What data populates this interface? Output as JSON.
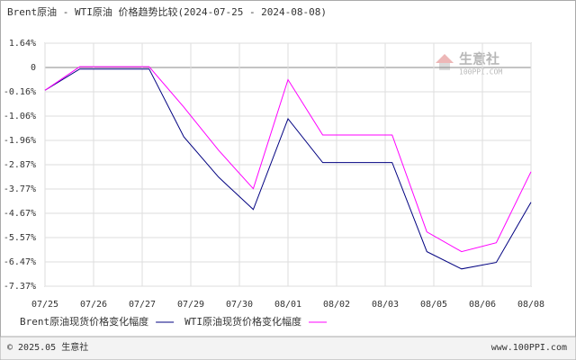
{
  "chart_data": {
    "type": "line",
    "title": "Brent原油 - WTI原油 价格趋势比较(2024-07-25 - 2024-08-08)",
    "watermark": "生意社",
    "watermark_sub": "100PPI.COM",
    "categories": [
      "07/25",
      "07/26",
      "07/27",
      "07/29",
      "07/30",
      "08/01",
      "08/02",
      "08/03",
      "08/05",
      "08/06",
      "08/08"
    ],
    "x": [
      "07/25",
      "07/26",
      "07/28",
      "07/29",
      "07/30",
      "07/31",
      "08/01",
      "08/02",
      "08/04",
      "08/05",
      "08/06",
      "08/07",
      "08/08"
    ],
    "series": [
      {
        "name": "Brent原油现货价格变化幅度",
        "color": "#000080",
        "values": [
          -0.15,
          -0.01,
          -0.01,
          -1.83,
          -3.33,
          -4.53,
          -1.16,
          -2.79,
          -2.79,
          -6.09,
          -6.73,
          -6.49,
          -4.26
        ]
      },
      {
        "name": "WTI原油现货价格变化幅度",
        "color": "#ff00ff",
        "values": [
          -0.15,
          0.05,
          0.05,
          -0.73,
          -2.33,
          -3.76,
          -0.08,
          -1.76,
          -1.76,
          -5.36,
          -6.09,
          -5.76,
          -3.13
        ]
      }
    ],
    "ylim": [
      -7.37,
      1.64
    ],
    "yticks": [
      {
        "value": 1.64,
        "label": "1.64%"
      },
      0,
      {
        "value": -0.16,
        "label": "-0.16%"
      },
      {
        "value": -1.06,
        "label": "-1.06%"
      },
      {
        "value": -1.96,
        "label": "-1.96%"
      },
      {
        "value": -2.87,
        "label": "-2.87%"
      },
      {
        "value": -3.77,
        "label": "-3.77%"
      },
      {
        "value": -4.67,
        "label": "-4.67%"
      },
      {
        "value": -5.57,
        "label": "-5.57%"
      },
      {
        "value": -6.47,
        "label": "-6.47%"
      },
      {
        "value": -7.37,
        "label": "-7.37%"
      }
    ],
    "grid": true,
    "footer_left": "© 2025.05 生意社",
    "footer_right": "www.100PPI.com"
  }
}
